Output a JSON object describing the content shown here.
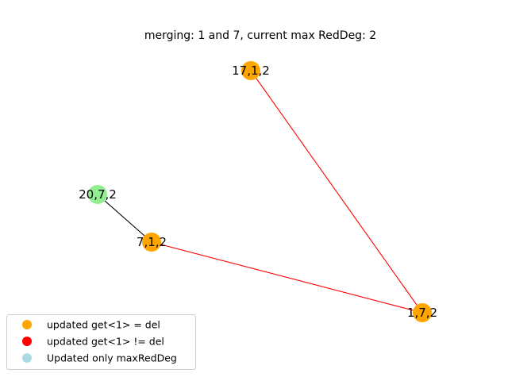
{
  "title": "merging: 1 and 7, current max RedDeg: 2",
  "nodes": [
    {
      "id": "n17",
      "label": "17,1,2",
      "color": "#ffa500"
    },
    {
      "id": "n20",
      "label": "20,7,2",
      "color": "#90ee90"
    },
    {
      "id": "n7",
      "label": "7,1,2",
      "color": "#ffa500"
    },
    {
      "id": "n1",
      "label": "1,7,2",
      "color": "#ffa500"
    }
  ],
  "edges": [
    {
      "from": "n17",
      "to": "n1",
      "color": "#ff0000"
    },
    {
      "from": "n7",
      "to": "n1",
      "color": "#ff0000"
    },
    {
      "from": "n20",
      "to": "n7",
      "color": "#000000"
    }
  ],
  "legend": {
    "items": [
      {
        "label": "updated get<1> = del",
        "color": "#ffa500"
      },
      {
        "label": "updated get<1> != del",
        "color": "#ff0000"
      },
      {
        "label": "Updated only maxRedDeg",
        "color": "#add8e6"
      }
    ]
  }
}
